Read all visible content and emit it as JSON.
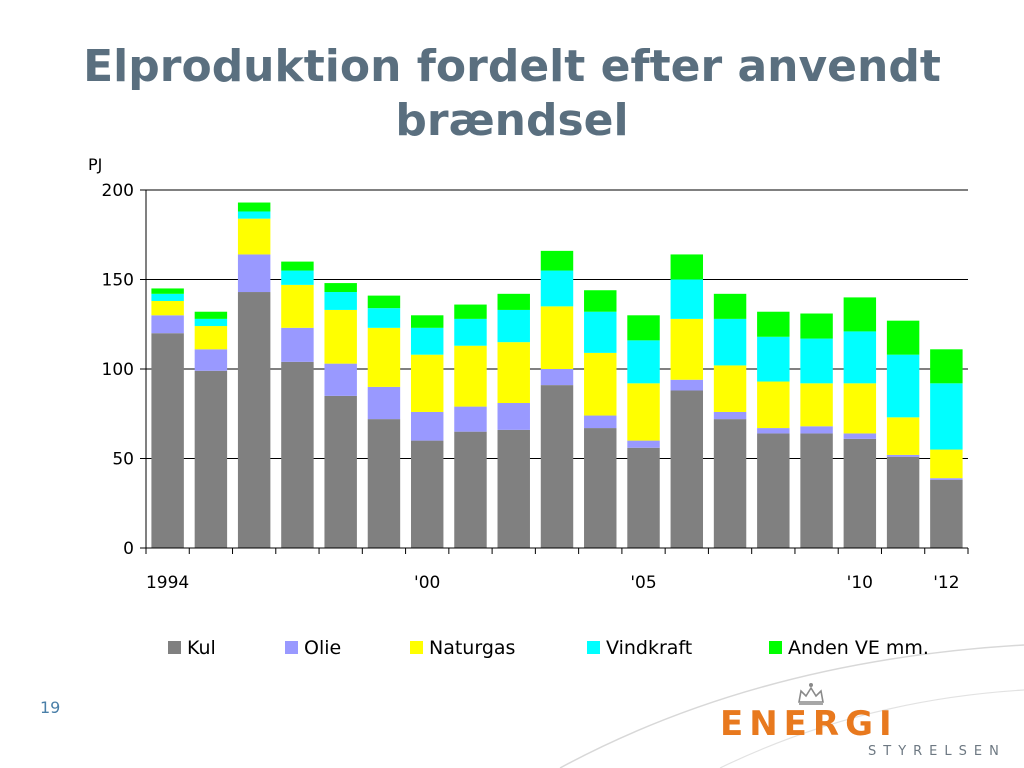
{
  "slide": {
    "title_line1": "Elproduktion fordelt efter anvendt",
    "title_line2": "brændsel",
    "number": "19"
  },
  "logo": {
    "word": "ENERGI",
    "sub": "STYRELSEN"
  },
  "colors": {
    "title": "#5a6f7f",
    "kul": "#808080",
    "olie": "#9999ff",
    "naturgas": "#ffff00",
    "vindkraft": "#00ffff",
    "anden_ve": "#00ff00",
    "logo_orange": "#e8791e"
  },
  "chart_data": {
    "type": "bar",
    "stacked": true,
    "unit_label": "PJ",
    "ylim": [
      0,
      200
    ],
    "yticks": [
      0,
      50,
      100,
      150,
      200
    ],
    "grid": true,
    "legend_position": "bottom",
    "categories": [
      "1994",
      "1995",
      "1996",
      "1997",
      "1998",
      "1999",
      "2000",
      "2001",
      "2002",
      "2003",
      "2004",
      "2005",
      "2006",
      "2007",
      "2008",
      "2009",
      "2010",
      "2011",
      "2012"
    ],
    "x_tick_labels": [
      {
        "index": 0,
        "label": "1994"
      },
      {
        "index": 6,
        "label": "'00"
      },
      {
        "index": 11,
        "label": "'05"
      },
      {
        "index": 16,
        "label": "'10"
      },
      {
        "index": 18,
        "label": "'12"
      }
    ],
    "series": [
      {
        "name": "Kul",
        "color": "#808080",
        "values": [
          120,
          99,
          143,
          104,
          85,
          72,
          60,
          65,
          66,
          91,
          67,
          56,
          88,
          72,
          64,
          64,
          61,
          51,
          38
        ]
      },
      {
        "name": "Olie",
        "color": "#9999ff",
        "values": [
          10,
          12,
          21,
          19,
          18,
          18,
          16,
          14,
          15,
          9,
          7,
          4,
          6,
          4,
          3,
          4,
          3,
          1,
          1
        ]
      },
      {
        "name": "Naturgas",
        "color": "#ffff00",
        "values": [
          8,
          13,
          20,
          24,
          30,
          33,
          32,
          34,
          34,
          35,
          35,
          32,
          34,
          26,
          26,
          24,
          28,
          21,
          16
        ]
      },
      {
        "name": "Vindkraft",
        "color": "#00ffff",
        "values": [
          4,
          4,
          4,
          8,
          10,
          11,
          15,
          15,
          18,
          20,
          23,
          24,
          22,
          26,
          25,
          25,
          29,
          35,
          37
        ]
      },
      {
        "name": "Anden VE mm.",
        "color": "#00ff00",
        "values": [
          3,
          4,
          5,
          5,
          5,
          7,
          7,
          8,
          9,
          11,
          12,
          14,
          14,
          14,
          14,
          14,
          19,
          19,
          19
        ]
      }
    ]
  }
}
